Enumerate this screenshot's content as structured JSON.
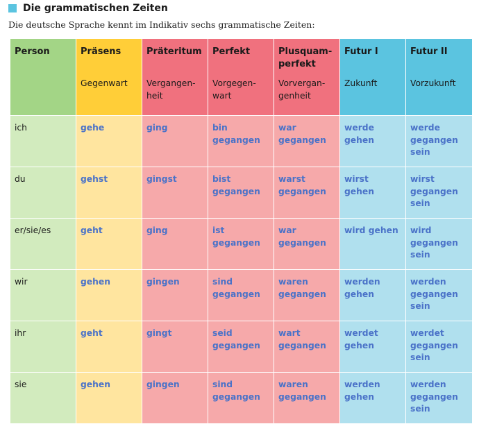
{
  "heading": {
    "icon": "square-bullet-icon",
    "icon_color": "#5bc4e0",
    "title": "Die grammatischen Zeiten"
  },
  "intro": "Die deutsche Sprache kennt im Indikativ sechs grammatische Zeiten:",
  "colors": {
    "person_header": "#a3d586",
    "praesens_header": "#ffce38",
    "past_header": "#f0717e",
    "future_header": "#5bc4e0",
    "form_text": "#4a72c8"
  },
  "table": {
    "columns": [
      {
        "title": "Person",
        "subtitle": ""
      },
      {
        "title": "Präsens",
        "subtitle": "Gegenwart"
      },
      {
        "title": "Präteritum",
        "subtitle": "Vergangen-\nheit"
      },
      {
        "title": "Perfekt",
        "subtitle": "Vorgegen-\nwart"
      },
      {
        "title": "Plusquam-\nperfekt",
        "subtitle": "Vorvergan-\ngenheit"
      },
      {
        "title": "Futur I",
        "subtitle": "Zukunft"
      },
      {
        "title": "Futur II",
        "subtitle": "Vorzukunft"
      }
    ],
    "rows": [
      [
        "ich",
        "gehe",
        "ging",
        "bin\ngegangen",
        "war\ngegangen",
        "werde gehen",
        "werde\ngegangen\nsein"
      ],
      [
        "du",
        "gehst",
        "gingst",
        "bist\ngegangen",
        "warst\ngegangen",
        "wirst gehen",
        "wirst\ngegangen\nsein"
      ],
      [
        "er/sie/es",
        "geht",
        "ging",
        "ist gegangen",
        "war\ngegangen",
        "wird gehen",
        "wird\ngegangen\nsein"
      ],
      [
        "wir",
        "gehen",
        "gingen",
        "sind\ngegangen",
        "waren\ngegangen",
        "werden\ngehen",
        "werden\ngegangen\nsein"
      ],
      [
        "ihr",
        "geht",
        "gingt",
        "seid\ngegangen",
        "wart\ngegangen",
        "werdet\ngehen",
        "werdet\ngegangen\nsein"
      ],
      [
        "sie",
        "gehen",
        "gingen",
        "sind\ngegangen",
        "waren\ngegangen",
        "werden\ngehen",
        "werden\ngegangen\nsein"
      ]
    ]
  }
}
